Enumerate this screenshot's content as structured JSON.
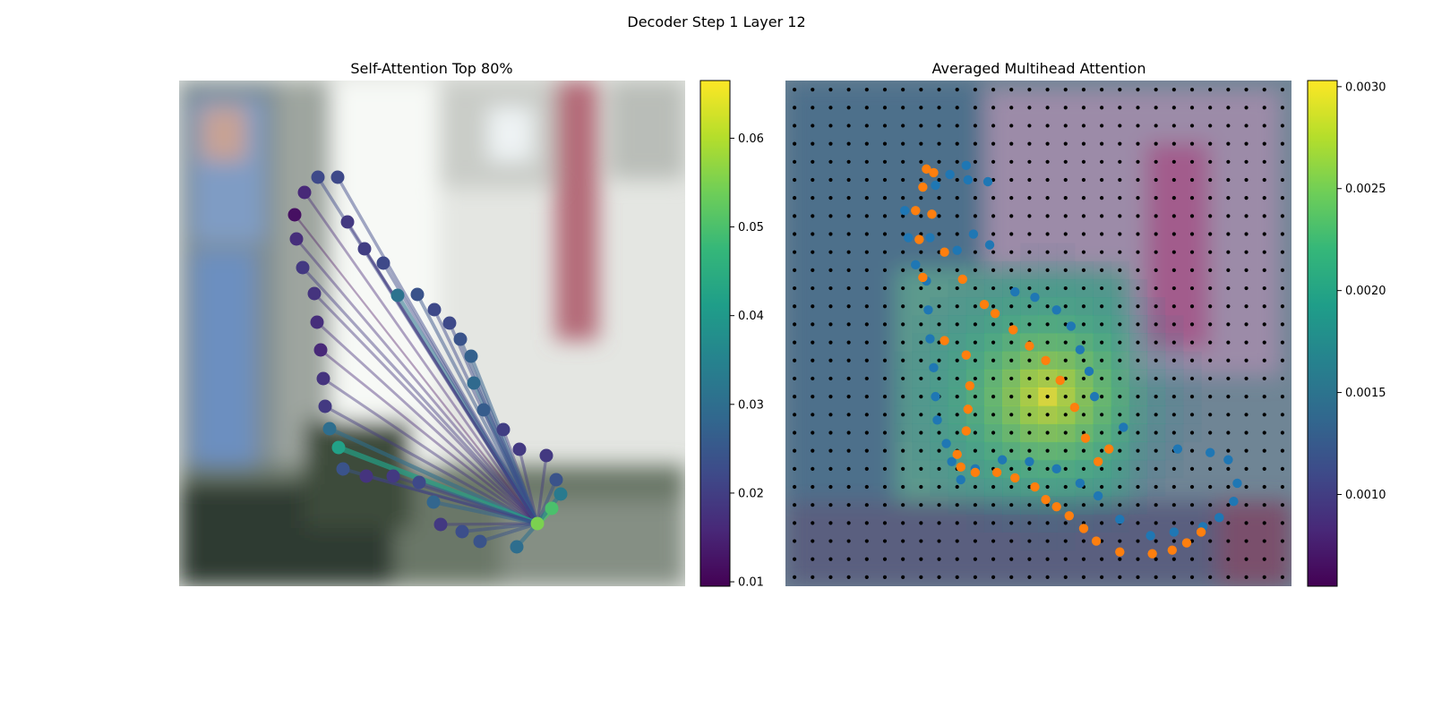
{
  "figure": {
    "suptitle": "Decoder Step 1 Layer 12"
  },
  "colors": {
    "viridis": [
      "#440154",
      "#482878",
      "#3e4a89",
      "#31688e",
      "#26828e",
      "#1f9e89",
      "#35b779",
      "#6ece58",
      "#b5de2b",
      "#fde725"
    ],
    "orange_points": "#ff7f0e",
    "blue_points": "#1f77b4",
    "grid_dots": "#000000",
    "tint_magenta": "#b06a9a",
    "tint_teal": "#4a8e86",
    "tint_blue": "#5a78a8"
  },
  "chart_data": [
    {
      "type": "scatter",
      "title": "Self-Attention Top 80%",
      "description_visible": "Blurred photo background with contour points connected by lines to a focal point",
      "focal_point": {
        "x": 400,
        "y": 495,
        "value": 0.055
      },
      "points": [
        {
          "x": 155,
          "y": 108,
          "value": 0.022
        },
        {
          "x": 177,
          "y": 108,
          "value": 0.022
        },
        {
          "x": 140,
          "y": 125,
          "value": 0.016
        },
        {
          "x": 129,
          "y": 150,
          "value": 0.012
        },
        {
          "x": 131,
          "y": 177,
          "value": 0.017
        },
        {
          "x": 138,
          "y": 209,
          "value": 0.019
        },
        {
          "x": 151,
          "y": 238,
          "value": 0.018
        },
        {
          "x": 154,
          "y": 270,
          "value": 0.017
        },
        {
          "x": 158,
          "y": 301,
          "value": 0.016
        },
        {
          "x": 161,
          "y": 333,
          "value": 0.018
        },
        {
          "x": 163,
          "y": 364,
          "value": 0.019
        },
        {
          "x": 168,
          "y": 389,
          "value": 0.03
        },
        {
          "x": 178,
          "y": 410,
          "value": 0.042
        },
        {
          "x": 183,
          "y": 434,
          "value": 0.024
        },
        {
          "x": 209,
          "y": 442,
          "value": 0.018
        },
        {
          "x": 239,
          "y": 442,
          "value": 0.019
        },
        {
          "x": 268,
          "y": 449,
          "value": 0.022
        },
        {
          "x": 284,
          "y": 471,
          "value": 0.028
        },
        {
          "x": 292,
          "y": 496,
          "value": 0.019
        },
        {
          "x": 316,
          "y": 504,
          "value": 0.023
        },
        {
          "x": 336,
          "y": 515,
          "value": 0.024
        },
        {
          "x": 377,
          "y": 521,
          "value": 0.03
        },
        {
          "x": 416,
          "y": 478,
          "value": 0.05
        },
        {
          "x": 426,
          "y": 462,
          "value": 0.033
        },
        {
          "x": 421,
          "y": 446,
          "value": 0.024
        },
        {
          "x": 410,
          "y": 419,
          "value": 0.019
        },
        {
          "x": 380,
          "y": 412,
          "value": 0.019
        },
        {
          "x": 362,
          "y": 390,
          "value": 0.02
        },
        {
          "x": 340,
          "y": 368,
          "value": 0.026
        },
        {
          "x": 329,
          "y": 338,
          "value": 0.029
        },
        {
          "x": 326,
          "y": 308,
          "value": 0.027
        },
        {
          "x": 314,
          "y": 289,
          "value": 0.024
        },
        {
          "x": 302,
          "y": 271,
          "value": 0.022
        },
        {
          "x": 285,
          "y": 256,
          "value": 0.022
        },
        {
          "x": 266,
          "y": 239,
          "value": 0.024
        },
        {
          "x": 244,
          "y": 240,
          "value": 0.031
        },
        {
          "x": 228,
          "y": 204,
          "value": 0.022
        },
        {
          "x": 207,
          "y": 188,
          "value": 0.02
        },
        {
          "x": 188,
          "y": 158,
          "value": 0.019
        }
      ],
      "colorbar": {
        "min": 0.0095,
        "max": 0.0665,
        "ticks": [
          0.01,
          0.02,
          0.03,
          0.04,
          0.05,
          0.06
        ],
        "tick_labels": [
          "0.01",
          "0.02",
          "0.03",
          "0.04",
          "0.05",
          "0.06"
        ]
      }
    },
    {
      "type": "heatmap",
      "title": "Averaged Multihead Attention",
      "grid": {
        "rows": 28,
        "cols": 28
      },
      "hotspot": {
        "col": 14,
        "row": 17
      },
      "blue_points": [
        [
          10,
          4.7
        ],
        [
          9.1,
          5.2
        ],
        [
          8.3,
          5.8
        ],
        [
          10.1,
          5.5
        ],
        [
          11.2,
          5.6
        ],
        [
          6.6,
          7.2
        ],
        [
          6.8,
          8.7
        ],
        [
          7.2,
          10.2
        ],
        [
          7.8,
          11.1
        ],
        [
          7.9,
          12.7
        ],
        [
          8,
          14.3
        ],
        [
          8.2,
          15.9
        ],
        [
          8.3,
          17.5
        ],
        [
          8.4,
          18.8
        ],
        [
          8.9,
          20.1
        ],
        [
          9.2,
          21.1
        ],
        [
          9.7,
          22.1
        ],
        [
          10.5,
          21.5
        ],
        [
          12,
          21
        ],
        [
          13.5,
          21.1
        ],
        [
          15,
          21.5
        ],
        [
          16.3,
          22.3
        ],
        [
          17.3,
          23
        ],
        [
          18.5,
          24.3
        ],
        [
          20.2,
          25.2
        ],
        [
          21.5,
          25
        ],
        [
          23.1,
          24.7
        ],
        [
          24,
          24.2
        ],
        [
          24.8,
          23.3
        ],
        [
          25,
          22.3
        ],
        [
          24.5,
          21
        ],
        [
          23.5,
          20.6
        ],
        [
          21.7,
          20.4
        ],
        [
          18.7,
          19.2
        ],
        [
          17.1,
          17.5
        ],
        [
          16.8,
          16.1
        ],
        [
          16.3,
          14.9
        ],
        [
          15.8,
          13.6
        ],
        [
          15,
          12.7
        ],
        [
          13.8,
          12
        ],
        [
          12.7,
          11.7
        ],
        [
          11.3,
          9.1
        ],
        [
          10.4,
          8.5
        ],
        [
          9.5,
          9.4
        ],
        [
          8,
          8.7
        ]
      ],
      "orange_points": [
        [
          7.8,
          4.9
        ],
        [
          8.2,
          5.1
        ],
        [
          7.6,
          5.9
        ],
        [
          7.2,
          7.2
        ],
        [
          8.1,
          7.4
        ],
        [
          7.4,
          8.8
        ],
        [
          8.8,
          9.5
        ],
        [
          7.6,
          10.9
        ],
        [
          9.8,
          11
        ],
        [
          11,
          12.4
        ],
        [
          11.6,
          12.9
        ],
        [
          12.6,
          13.8
        ],
        [
          8.8,
          14.4
        ],
        [
          13.5,
          14.7
        ],
        [
          10,
          15.2
        ],
        [
          14.4,
          15.5
        ],
        [
          15.2,
          16.6
        ],
        [
          10.2,
          16.9
        ],
        [
          16,
          18.1
        ],
        [
          10.1,
          18.2
        ],
        [
          16.6,
          19.8
        ],
        [
          10,
          19.4
        ],
        [
          17.9,
          20.4
        ],
        [
          9.5,
          20.7
        ],
        [
          17.3,
          21.1
        ],
        [
          9.7,
          21.4
        ],
        [
          10.5,
          21.7
        ],
        [
          11.7,
          21.7
        ],
        [
          12.7,
          22
        ],
        [
          13.8,
          22.5
        ],
        [
          14.4,
          23.2
        ],
        [
          15,
          23.6
        ],
        [
          15.7,
          24.1
        ],
        [
          16.5,
          24.8
        ],
        [
          17.2,
          25.5
        ],
        [
          18.5,
          26.1
        ],
        [
          20.3,
          26.2
        ],
        [
          21.4,
          26
        ],
        [
          22.2,
          25.6
        ],
        [
          23,
          25
        ]
      ],
      "colorbar": {
        "min": 0.00055,
        "max": 0.00303,
        "ticks": [
          0.001,
          0.0015,
          0.002,
          0.0025,
          0.003
        ],
        "tick_labels": [
          "0.0010",
          "0.0015",
          "0.0020",
          "0.0025",
          "0.0030"
        ]
      }
    }
  ]
}
